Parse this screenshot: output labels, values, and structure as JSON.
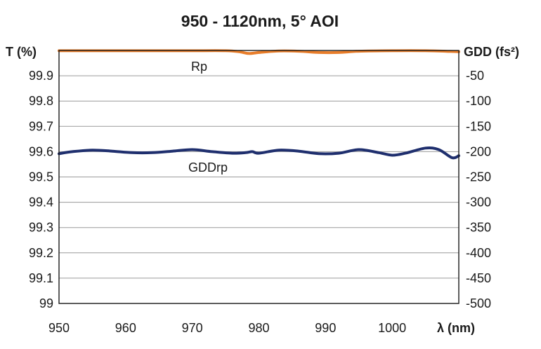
{
  "chart_data": {
    "type": "line",
    "title": "950 - 1120nm, 5° AOI",
    "xlabel": "λ (nm)",
    "ylabel_left": "T (%)",
    "ylabel_right": "GDD (fs²)",
    "xlim": [
      950,
      1010
    ],
    "ylim_left": [
      99.0,
      100.0
    ],
    "ylim_right": [
      -500,
      0
    ],
    "x_ticks": [
      "950",
      "960",
      "970",
      "980",
      "990",
      "1000"
    ],
    "y_left_ticks": [
      "99.9",
      "99.8",
      "99.7",
      "99.6",
      "99.5",
      "99.4",
      "99.3",
      "99.2",
      "99.1",
      "99"
    ],
    "y_right_ticks": [
      "-50",
      "-100",
      "-150",
      "-200",
      "-250",
      "-300",
      "-350",
      "-400",
      "-450",
      "-500"
    ],
    "grid": "horizontal",
    "series": [
      {
        "name": "Rp",
        "axis": "left",
        "color": "#e87d2a",
        "x": [
          950,
          955,
          960,
          965,
          970,
          975,
          977,
          978.5,
          980,
          983,
          986,
          989,
          992,
          995,
          1000,
          1005,
          1010
        ],
        "values": [
          99.999,
          99.999,
          99.999,
          99.999,
          99.999,
          99.999,
          99.995,
          99.988,
          99.992,
          99.998,
          99.997,
          99.992,
          99.992,
          99.997,
          99.999,
          99.999,
          99.995
        ]
      },
      {
        "name": "GDDrp",
        "axis": "right",
        "color": "#1f2f6e",
        "x": [
          950,
          952,
          955,
          958,
          961,
          964,
          967,
          970,
          973,
          976,
          978,
          979,
          980,
          983,
          986,
          989,
          992,
          995,
          998,
          1000,
          1002,
          1005,
          1007,
          1009,
          1010
        ],
        "values": [
          -204,
          -200,
          -197,
          -199,
          -202,
          -202,
          -199,
          -196,
          -200,
          -203,
          -202,
          -200,
          -203,
          -197,
          -199,
          -204,
          -203,
          -196,
          -202,
          -207,
          -203,
          -193,
          -196,
          -212,
          -208
        ]
      }
    ]
  }
}
